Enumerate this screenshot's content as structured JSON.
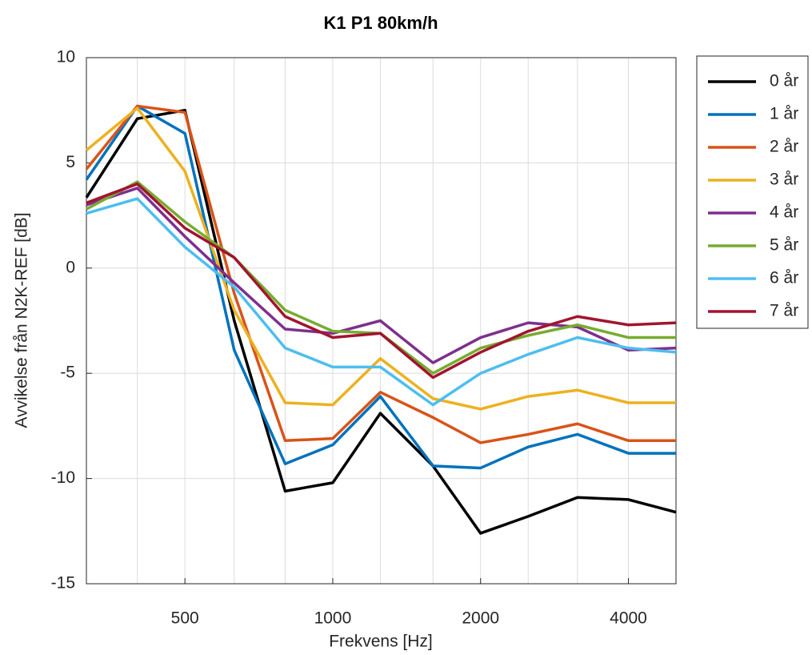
{
  "chart_data": {
    "type": "line",
    "title": "K1 P1 80km/h",
    "x_label": "Frekvens [Hz]",
    "y_label": "Avvikelse från N2K-REF [dB]",
    "x": [
      315,
      400,
      500,
      630,
      800,
      1000,
      1250,
      1600,
      2000,
      2500,
      3150,
      4000,
      5000
    ],
    "xscale": "log",
    "xlim": [
      315,
      5000
    ],
    "xticks": [
      500,
      1000,
      2000,
      4000
    ],
    "ylim": [
      -15,
      10
    ],
    "yticks": [
      -15,
      -10,
      -5,
      0,
      5,
      10
    ],
    "grid": true,
    "legend": "outside-right",
    "series": [
      {
        "name": "0 år",
        "color": "#000000",
        "values": [
          3.35,
          7.1,
          7.5,
          -2.5,
          -10.6,
          -10.2,
          -6.9,
          -9.4,
          -12.6,
          -11.8,
          -10.9,
          -11.0,
          -11.6
        ]
      },
      {
        "name": "1 år",
        "color": "#0072BD",
        "values": [
          4.2,
          7.7,
          6.4,
          -3.9,
          -9.3,
          -8.4,
          -6.1,
          -9.4,
          -9.5,
          -8.5,
          -7.9,
          -8.8,
          -8.8
        ]
      },
      {
        "name": "2 år",
        "color": "#D95319",
        "values": [
          4.7,
          7.7,
          7.4,
          -1.2,
          -8.2,
          -8.1,
          -5.9,
          -7.1,
          -8.3,
          -7.9,
          -7.4,
          -8.2,
          -8.2
        ]
      },
      {
        "name": "3 år",
        "color": "#EDB120",
        "values": [
          5.6,
          7.6,
          4.6,
          -2.0,
          -6.4,
          -6.5,
          -4.3,
          -6.2,
          -6.7,
          -6.1,
          -5.8,
          -6.4,
          -6.4
        ]
      },
      {
        "name": "4 år",
        "color": "#7E2F8E",
        "values": [
          3.0,
          3.8,
          1.5,
          -0.7,
          -2.9,
          -3.1,
          -2.5,
          -4.5,
          -3.3,
          -2.6,
          -2.8,
          -3.9,
          -3.8
        ]
      },
      {
        "name": "5 år",
        "color": "#77AC30",
        "values": [
          2.8,
          4.1,
          2.2,
          0.5,
          -2.0,
          -3.0,
          -3.1,
          -5.0,
          -3.8,
          -3.2,
          -2.7,
          -3.3,
          -3.3
        ]
      },
      {
        "name": "6 år",
        "color": "#4DBEEE",
        "values": [
          2.6,
          3.3,
          1.0,
          -0.9,
          -3.8,
          -4.7,
          -4.7,
          -6.5,
          -5.0,
          -4.1,
          -3.3,
          -3.8,
          -4.0
        ]
      },
      {
        "name": "7 år",
        "color": "#A2142F",
        "values": [
          3.1,
          4.0,
          1.9,
          0.5,
          -2.3,
          -3.3,
          -3.1,
          -5.2,
          -4.0,
          -3.0,
          -2.3,
          -2.7,
          -2.6
        ]
      }
    ]
  }
}
